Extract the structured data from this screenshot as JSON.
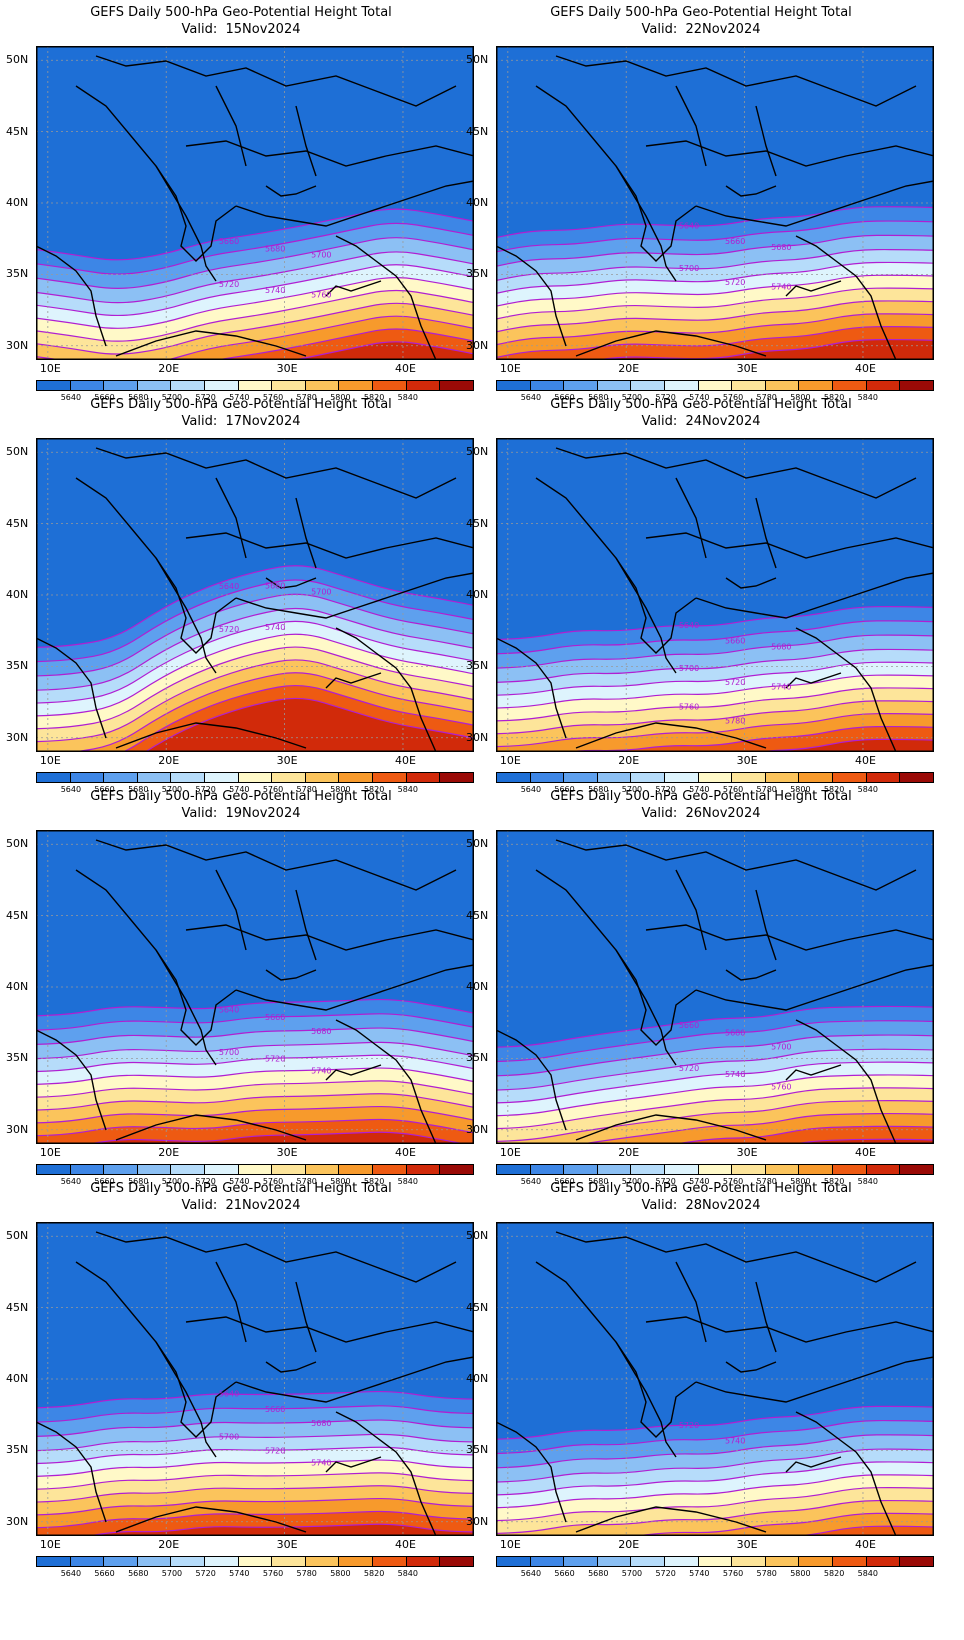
{
  "panels": [
    {
      "title": "GEFS Daily 500-hPa Geo-Potential Height Total",
      "valid": "Valid:  15Nov2024",
      "shift": [
        -3,
        -4,
        -5,
        -4,
        -2,
        -1,
        0,
        1,
        2,
        1,
        0
      ],
      "labels": [
        "5660",
        "5680",
        "5700",
        "5720",
        "5740",
        "5760"
      ]
    },
    {
      "title": "GEFS Daily 500-hPa Geo-Potential Height Total",
      "valid": "Valid:  22Nov2024",
      "shift": [
        -2,
        -1,
        -1,
        0,
        0,
        0,
        1,
        1,
        2,
        2,
        2
      ],
      "labels": [
        "5640",
        "5660",
        "5680",
        "5700",
        "5720",
        "5740"
      ]
    },
    {
      "title": "GEFS Daily 500-hPa Geo-Potential Height Total",
      "valid": "Valid:  17Nov2024",
      "shift": [
        -4,
        -4,
        -3,
        1,
        4,
        6,
        7,
        5,
        3,
        2,
        1
      ],
      "labels": [
        "5640",
        "5680",
        "5700",
        "5720",
        "5740"
      ]
    },
    {
      "title": "GEFS Daily 500-hPa Geo-Potential Height Total",
      "valid": "Valid:  24Nov2024",
      "shift": [
        -3,
        -3,
        -2,
        -2,
        -1,
        -1,
        0,
        0,
        1,
        1,
        1
      ],
      "labels": [
        "5640",
        "5660",
        "5680",
        "5700",
        "5720",
        "5740",
        "5760",
        "5780"
      ]
    },
    {
      "title": "GEFS Daily 500-hPa Geo-Potential Height Total",
      "valid": "Valid:  19Nov2024",
      "shift": [
        -1,
        -1,
        0,
        0,
        0,
        1,
        1,
        1,
        1,
        0,
        -1
      ],
      "labels": [
        "5640",
        "5660",
        "5680",
        "5700",
        "5720",
        "5740"
      ]
    },
    {
      "title": "GEFS Daily 500-hPa Geo-Potential Height Total",
      "valid": "Valid:  26Nov2024",
      "shift": [
        -5,
        -5,
        -4,
        -3,
        -2,
        -1,
        -1,
        0,
        0,
        0,
        0
      ],
      "labels": [
        "5660",
        "5680",
        "5700",
        "5720",
        "5740",
        "5760"
      ]
    },
    {
      "title": "GEFS Daily 500-hPa Geo-Potential Height Total",
      "valid": "Valid:  21Nov2024",
      "shift": [
        -1,
        -1,
        0,
        0,
        1,
        1,
        1,
        1,
        1,
        0,
        0
      ],
      "labels": [
        "5640",
        "5660",
        "5680",
        "5700",
        "5720",
        "5740"
      ]
    },
    {
      "title": "GEFS Daily 500-hPa Geo-Potential Height Total",
      "valid": "Valid:  28Nov2024",
      "shift": [
        -5,
        -5,
        -4,
        -4,
        -3,
        -3,
        -2,
        -2,
        -1,
        -1,
        -1
      ],
      "labels": [
        "5720",
        "5740"
      ]
    }
  ],
  "lat_labels": [
    "50N",
    "45N",
    "40N",
    "35N",
    "30N"
  ],
  "lon_labels": [
    "10E",
    "20E",
    "30E",
    "40E"
  ],
  "colorbar": {
    "labels": [
      "5640",
      "5660",
      "5680",
      "5700",
      "5720",
      "5740",
      "5760",
      "5780",
      "5800",
      "5820",
      "5840"
    ],
    "colors": [
      "#1e6fd6",
      "#3d86e6",
      "#5ea0ee",
      "#8cc0f4",
      "#b6dcfa",
      "#def4fd",
      "#fff9c8",
      "#fde59a",
      "#fbc45c",
      "#f79a2c",
      "#ee5a12",
      "#d12a0a",
      "#9a0a06"
    ]
  },
  "contour_color": "#b01fd2"
}
